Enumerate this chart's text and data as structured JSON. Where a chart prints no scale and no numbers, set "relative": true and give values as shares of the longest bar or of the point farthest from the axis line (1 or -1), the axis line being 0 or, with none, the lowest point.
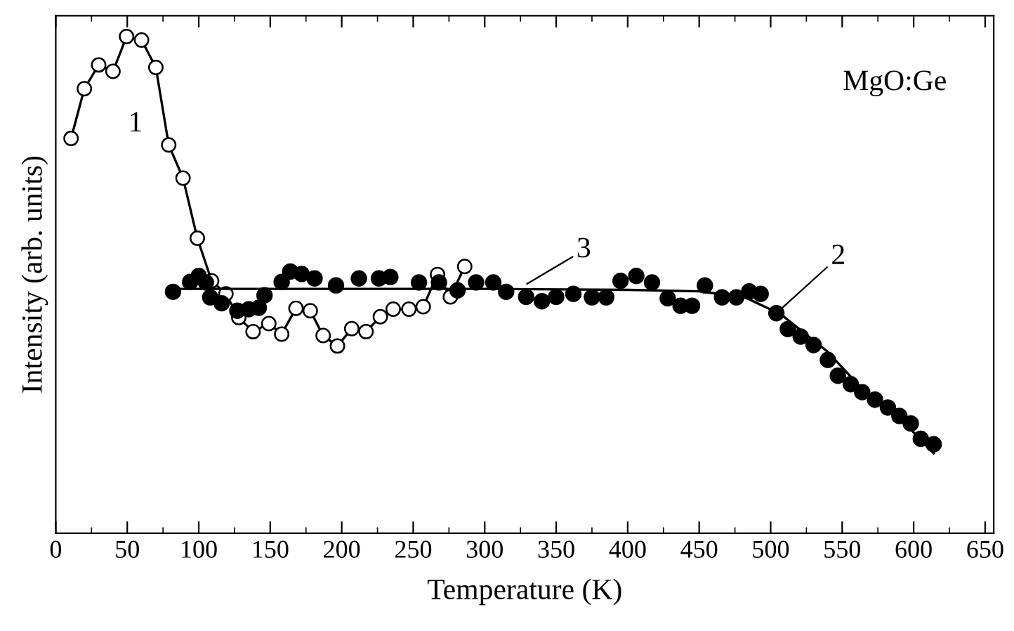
{
  "chart_data": {
    "type": "line",
    "relative": true,
    "xlabel": "Temperature (K)",
    "ylabel": "Intensity (arb. units)",
    "xlim": [
      0,
      656
    ],
    "xticks": [
      0,
      50,
      100,
      150,
      200,
      250,
      300,
      350,
      400,
      450,
      500,
      550,
      600,
      650
    ],
    "tick_labels": "x",
    "grid": false,
    "series": [
      {
        "marker": "circle",
        "color": "#000000",
        "x": [
          10.7,
          20,
          30,
          40,
          49.5,
          60,
          70,
          79,
          89,
          99,
          109,
          119,
          128,
          138,
          149,
          158,
          168,
          178,
          187,
          197,
          207,
          217,
          227,
          236,
          247,
          257,
          267,
          276,
          286
        ],
        "values": [
          0.795,
          0.895,
          0.943,
          0.93,
          1.0,
          0.993,
          0.938,
          0.782,
          0.715,
          0.594,
          0.508,
          0.482,
          0.434,
          0.406,
          0.422,
          0.401,
          0.453,
          0.448,
          0.398,
          0.377,
          0.412,
          0.406,
          0.436,
          0.451,
          0.451,
          0.456,
          0.521,
          0.476,
          0.537
        ]
      },
      {
        "type": "scatter",
        "marker": "circle",
        "color": "#000000",
        "x": [
          82,
          94,
          100,
          105,
          108,
          116,
          127,
          135,
          142,
          146,
          158,
          164,
          172,
          181,
          196,
          212,
          226,
          234,
          254,
          268,
          281,
          294,
          306,
          315,
          329,
          340,
          350,
          362,
          375,
          385,
          395,
          406,
          417,
          428,
          437,
          445,
          454,
          466,
          476,
          485,
          493,
          504,
          512,
          521,
          530,
          540,
          547,
          556,
          564,
          573,
          582,
          590,
          598,
          605,
          614
        ],
        "values": [
          0.486,
          0.506,
          0.518,
          0.505,
          0.475,
          0.463,
          0.448,
          0.451,
          0.454,
          0.479,
          0.506,
          0.527,
          0.522,
          0.513,
          0.499,
          0.513,
          0.513,
          0.516,
          0.505,
          0.505,
          0.489,
          0.505,
          0.505,
          0.486,
          0.476,
          0.467,
          0.476,
          0.482,
          0.475,
          0.475,
          0.508,
          0.518,
          0.505,
          0.473,
          0.458,
          0.458,
          0.499,
          0.475,
          0.475,
          0.487,
          0.482,
          0.443,
          0.411,
          0.396,
          0.379,
          0.349,
          0.317,
          0.3,
          0.284,
          0.269,
          0.253,
          0.236,
          0.221,
          0.19,
          0.179
        ]
      },
      {
        "marker": "none",
        "color": "#000000",
        "x": [
          87,
          200,
          300,
          400,
          450,
          482,
          507,
          540,
          566,
          595,
          614
        ],
        "values": [
          0.492,
          0.492,
          0.492,
          0.49,
          0.487,
          0.475,
          0.441,
          0.365,
          0.284,
          0.218,
          0.161
        ]
      }
    ],
    "annotations": [
      "1",
      {
        "text": "2",
        "x": 504,
        "y": 0.443
      },
      {
        "text": "3",
        "x": 326,
        "y": 0.496
      },
      "MgO:Ge"
    ]
  }
}
